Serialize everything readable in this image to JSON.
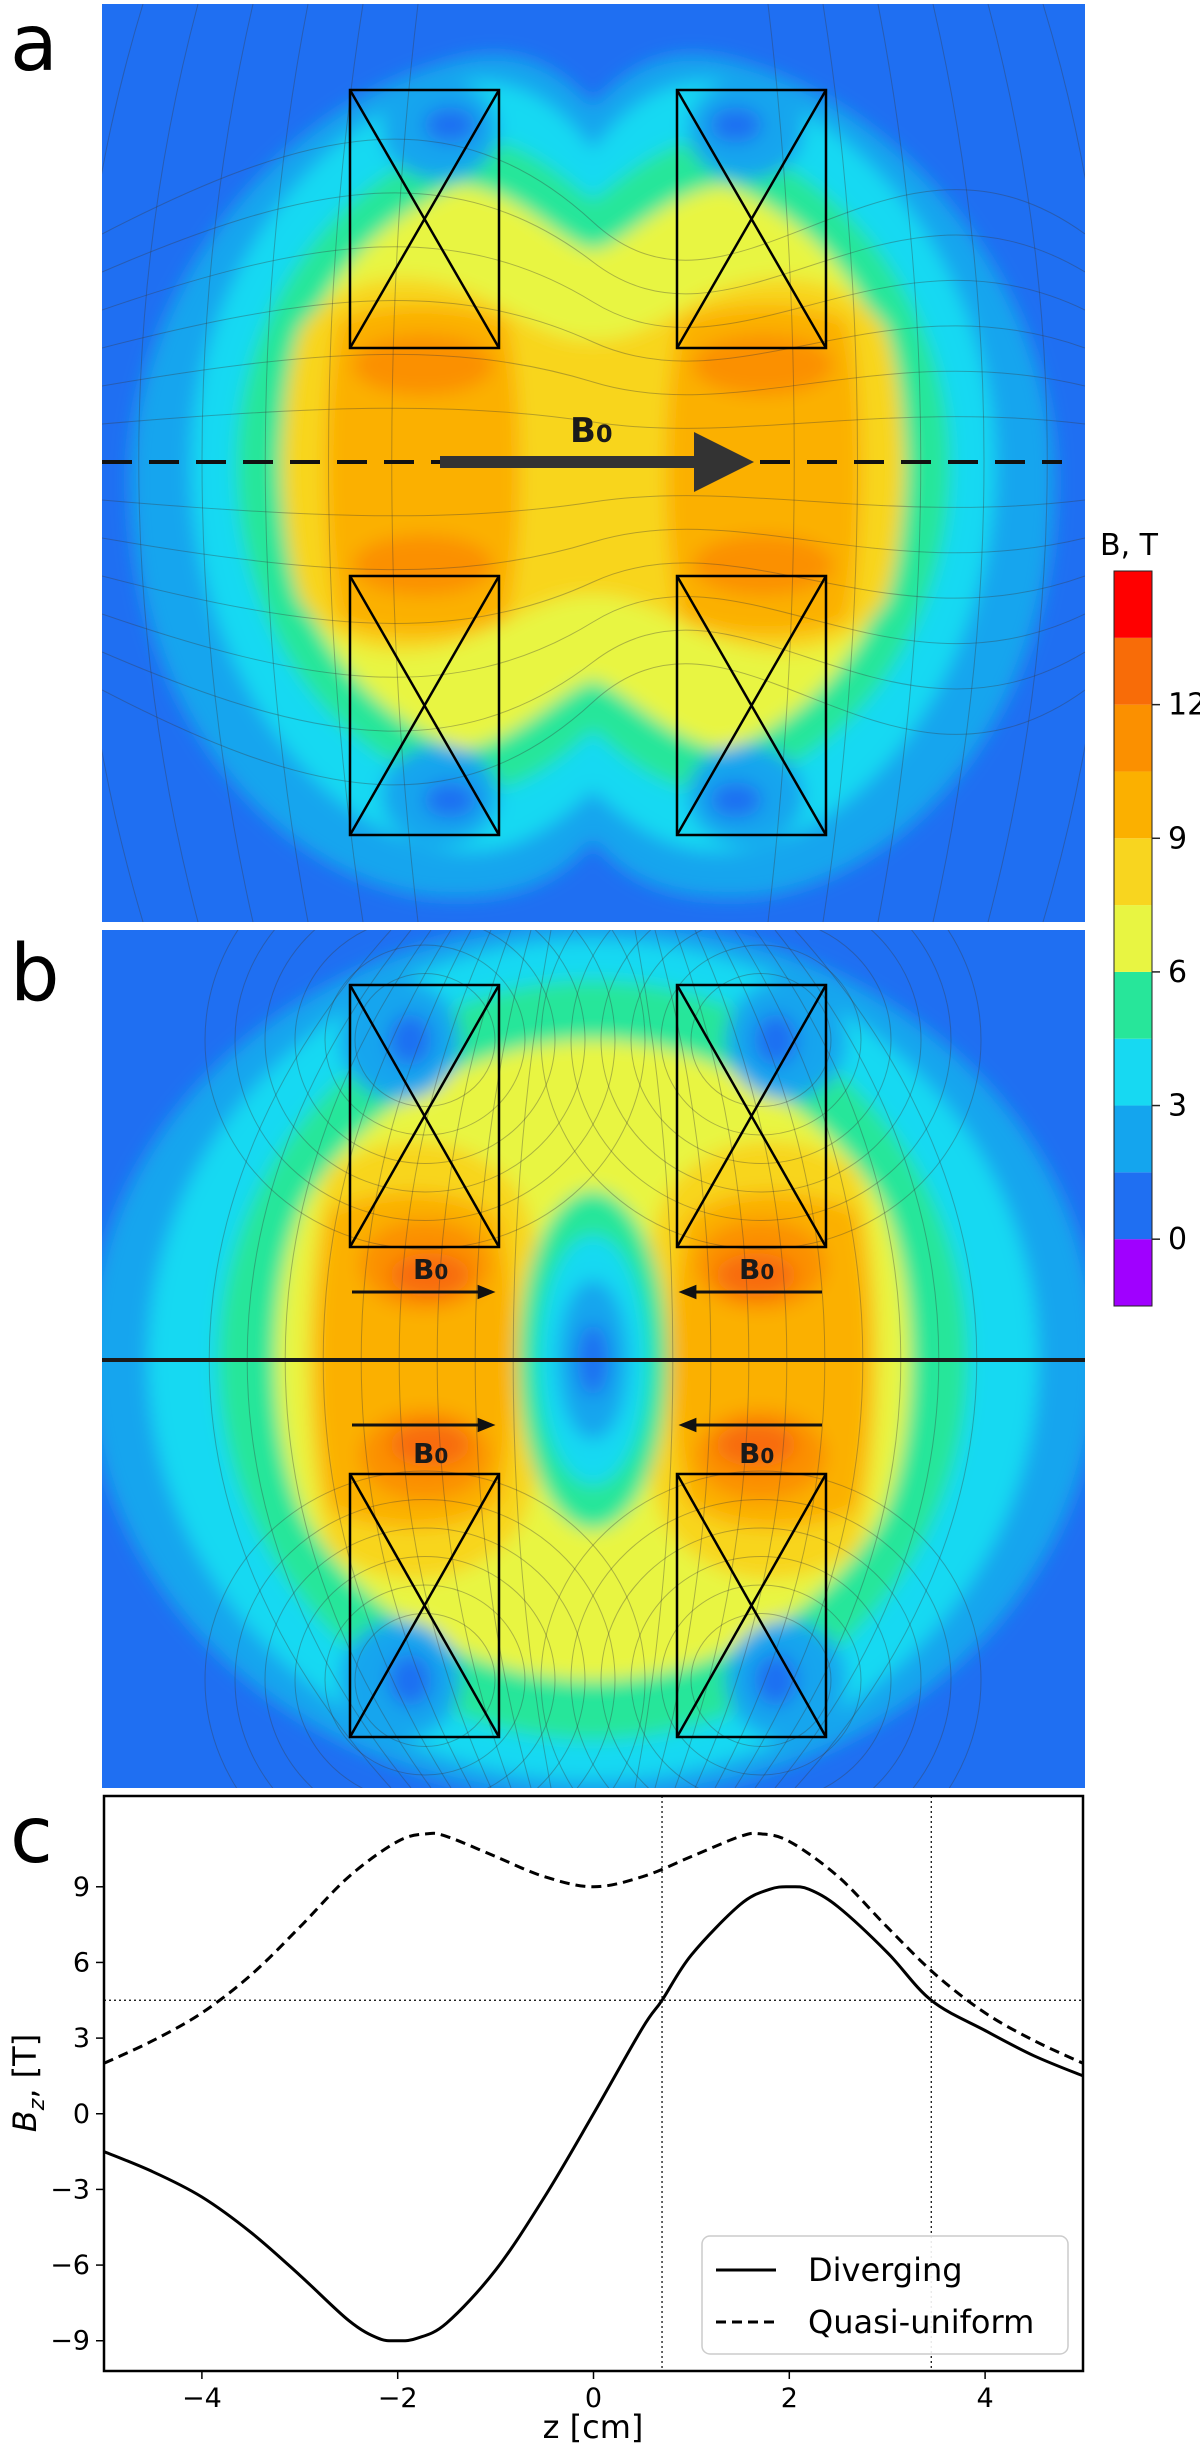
{
  "panel_labels": {
    "a": "a",
    "b": "b",
    "c": "c"
  },
  "field_label": "B",
  "field_subscript": "0",
  "colorbar": {
    "title": "B, T",
    "ticks": [
      "0",
      "3",
      "6",
      "9",
      "12"
    ],
    "tick_values": [
      0,
      3,
      6,
      9,
      12
    ],
    "levels": [
      -1.5,
      0,
      1.5,
      3,
      4.5,
      6,
      7.5,
      9,
      10.5,
      12,
      13.5,
      15
    ],
    "colors": [
      "#a000ff",
      "#1f6ff2",
      "#14a5ee",
      "#17d9f2",
      "#27e69a",
      "#e8f542",
      "#f8d51f",
      "#fbb000",
      "#fb9000",
      "#f86c08",
      "#ff0000"
    ]
  },
  "chart_data": {
    "type": "line",
    "title": "",
    "xlabel": "z [cm]",
    "ylabel_main": "B",
    "ylabel_sub": "z",
    "ylabel_rest": ", [T]",
    "xlim": [
      -5,
      5
    ],
    "ylim": [
      -10.2,
      12.6
    ],
    "xticks": [
      -4,
      -2,
      0,
      2,
      4
    ],
    "xtick_labels": [
      "−4",
      "−2",
      "0",
      "2",
      "4"
    ],
    "yticks": [
      -9,
      -6,
      -3,
      0,
      3,
      6,
      9
    ],
    "ytick_labels": [
      "−9",
      "−6",
      "−3",
      "0",
      "3",
      "6",
      "9"
    ],
    "reference_lines": {
      "y": 4.5,
      "x": [
        0.7,
        3.45
      ]
    },
    "legend_position": "lower right",
    "grid": false,
    "series": [
      {
        "name": "Diverging",
        "style": "solid",
        "x": [
          -5,
          -4.5,
          -4,
          -3.5,
          -3,
          -2.5,
          -2.2,
          -2,
          -1.8,
          -1.5,
          -1,
          -0.5,
          0,
          0.5,
          0.7,
          1,
          1.5,
          1.8,
          2,
          2.2,
          2.5,
          3,
          3.45,
          4,
          4.5,
          5
        ],
        "y": [
          -1.5,
          -2.3,
          -3.3,
          -4.7,
          -6.4,
          -8.2,
          -8.9,
          -9.0,
          -8.9,
          -8.3,
          -6.2,
          -3.3,
          0,
          3.4,
          4.5,
          6.3,
          8.3,
          8.9,
          9.0,
          8.9,
          8.2,
          6.4,
          4.5,
          3.3,
          2.3,
          1.5
        ]
      },
      {
        "name": "Quasi-uniform",
        "style": "dashed",
        "x": [
          -5,
          -4.5,
          -4,
          -3.5,
          -3,
          -2.5,
          -2,
          -1.7,
          -1.5,
          -1,
          -0.5,
          0,
          0.5,
          1,
          1.5,
          1.7,
          2,
          2.5,
          3,
          3.5,
          4,
          4.5,
          5
        ],
        "y": [
          2.0,
          2.9,
          4.0,
          5.5,
          7.4,
          9.4,
          10.8,
          11.1,
          11.0,
          10.2,
          9.4,
          9.0,
          9.4,
          10.2,
          11.0,
          11.1,
          10.8,
          9.4,
          7.4,
          5.5,
          4.0,
          2.9,
          2.0
        ]
      }
    ]
  }
}
